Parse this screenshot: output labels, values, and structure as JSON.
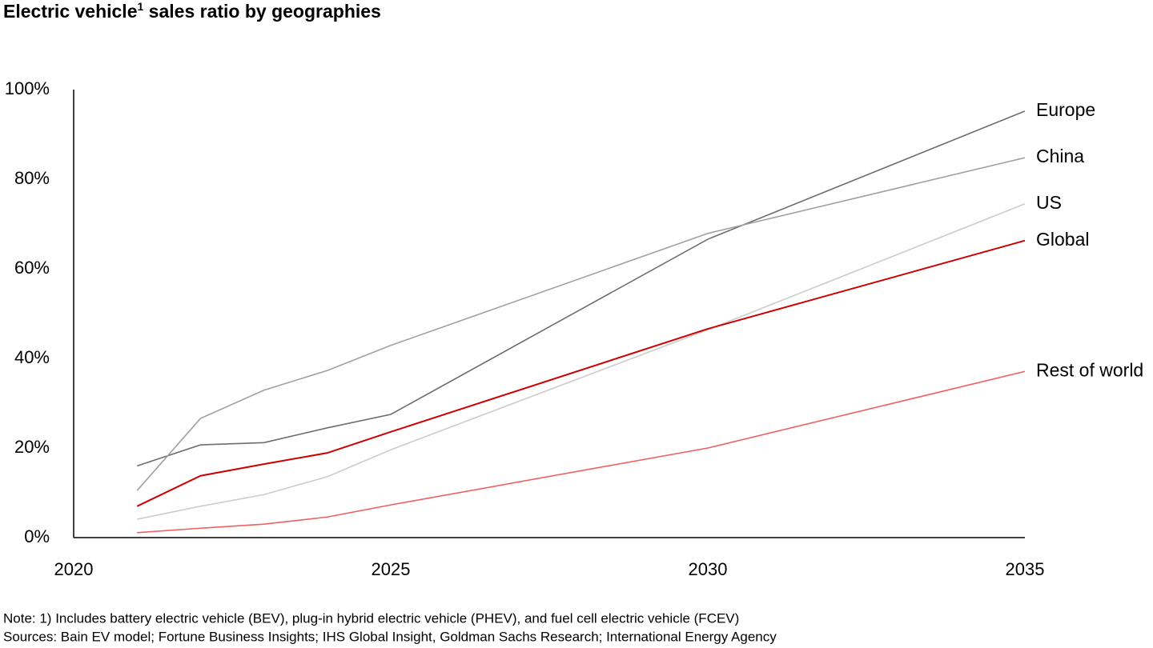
{
  "chart_data": {
    "type": "line",
    "title": [
      "Electric vehicle",
      "1",
      " sales ratio by geographies"
    ],
    "x": [
      2021,
      2022,
      2023,
      2024,
      2025,
      2030,
      2035
    ],
    "xlim": [
      2020,
      2035
    ],
    "xticks": [
      2020,
      2025,
      2030,
      2035
    ],
    "ylim": [
      0,
      100
    ],
    "yticks": [
      {
        "value": 0,
        "label": "0%"
      },
      {
        "value": 20,
        "label": "20%"
      },
      {
        "value": 40,
        "label": "40%"
      },
      {
        "value": 60,
        "label": "60%"
      },
      {
        "value": 80,
        "label": "80%"
      },
      {
        "value": 100,
        "label": "100%"
      }
    ],
    "grid": false,
    "series": [
      {
        "name": "Europe",
        "color": "#6e6e6e",
        "values": [
          16,
          20.7,
          21.2,
          24.5,
          27.5,
          66.6,
          95.2
        ]
      },
      {
        "name": "China",
        "color": "#a0a0a0",
        "values": [
          10.5,
          26.6,
          32.9,
          37.3,
          42.9,
          67.9,
          84.8
        ]
      },
      {
        "name": "US",
        "color": "#cccccc",
        "values": [
          4.1,
          7,
          9.6,
          13.6,
          19.6,
          46.4,
          74.5
        ]
      },
      {
        "name": "Global",
        "color": "#cc0000",
        "values": [
          7,
          13.8,
          16.4,
          18.9,
          23.6,
          46.6,
          66.3
        ]
      },
      {
        "name": "Rest of world",
        "color": "#f06060",
        "values": [
          1.1,
          2.1,
          3,
          4.6,
          7.3,
          20,
          37.1
        ]
      }
    ],
    "notes": [
      "Note: 1) Includes battery electric vehicle (BEV), plug-in hybrid electric vehicle (PHEV), and fuel cell electric vehicle (FCEV)",
      "Sources: Bain EV model; Fortune Business Insights; IHS Global Insight, Goldman Sachs Research; International Energy Agency"
    ]
  }
}
